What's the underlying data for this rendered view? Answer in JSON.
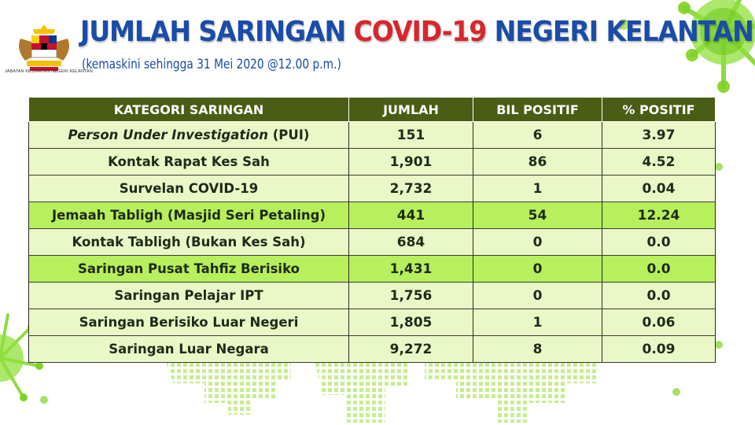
{
  "header": {
    "title_part1": "JUMLAH SARINGAN ",
    "title_highlight": "COVID-19",
    "title_part2": " NEGERI KELANTAN",
    "subtitle": "(kemaskini sehingga 31 Mei 2020 @12.00 p.m.)",
    "logo_caption": "JABATAN KESIHATAN NEGERI KELANTAN"
  },
  "table": {
    "headers": [
      "KATEGORI SARINGAN",
      "JUMLAH",
      "BIL POSITIF",
      "% POSITIF"
    ],
    "rows": [
      {
        "category_italic": "Person Under Investigation",
        "category": " (PUI)",
        "jumlah": "151",
        "positif": "6",
        "peratus": "3.97"
      },
      {
        "category_italic": "",
        "category": "Kontak Rapat Kes Sah",
        "jumlah": "1,901",
        "positif": "86",
        "peratus": "4.52"
      },
      {
        "category_italic": "",
        "category": "Survelan COVID-19",
        "jumlah": "2,732",
        "positif": "1",
        "peratus": "0.04"
      },
      {
        "category_italic": "",
        "category": "Jemaah Tabligh (Masjid Seri Petaling)",
        "jumlah": "441",
        "positif": "54",
        "peratus": "12.24"
      },
      {
        "category_italic": "",
        "category": "Kontak Tabligh (Bukan Kes Sah)",
        "jumlah": "684",
        "positif": "0",
        "peratus": "0.0"
      },
      {
        "category_italic": "",
        "category": "Saringan Pusat Tahfiz Berisiko",
        "jumlah": "1,431",
        "positif": "0",
        "peratus": "0.0"
      },
      {
        "category_italic": "",
        "category": "Saringan Pelajar IPT",
        "jumlah": "1,756",
        "positif": "0",
        "peratus": "0.0"
      },
      {
        "category_italic": "",
        "category": "Saringan Berisiko Luar Negeri",
        "jumlah": "1,805",
        "positif": "1",
        "peratus": "0.06"
      },
      {
        "category_italic": "",
        "category": "Saringan Luar Negara",
        "jumlah": "9,272",
        "positif": "8",
        "peratus": "0.09"
      }
    ]
  },
  "colors": {
    "title_blue": "#1a4ca8",
    "title_red": "#d8262d",
    "header_bg": "#4a5d14",
    "row_light": "#e9f8c6",
    "row_dark": "#b8ef5c",
    "virus_green": "#6cc417"
  },
  "icons": [
    "coat-of-arms-logo",
    "virus-icon",
    "world-map-dots"
  ]
}
